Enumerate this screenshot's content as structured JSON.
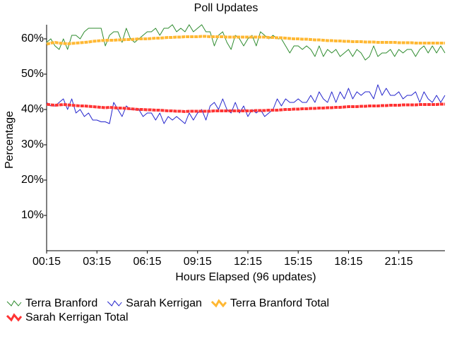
{
  "chart_data": {
    "type": "line",
    "title": "Poll Updates",
    "xlabel": "Hours Elapsed (96 updates)",
    "ylabel": "Percentage",
    "categories": [
      "00:15",
      null,
      null,
      null,
      null,
      null,
      null,
      null,
      null,
      null,
      null,
      null,
      "03:15",
      null,
      null,
      null,
      null,
      null,
      null,
      null,
      null,
      null,
      null,
      null,
      "06:15",
      null,
      null,
      null,
      null,
      null,
      null,
      null,
      null,
      null,
      null,
      null,
      "09:15",
      null,
      null,
      null,
      null,
      null,
      null,
      null,
      null,
      null,
      null,
      null,
      "12:15",
      null,
      null,
      null,
      null,
      null,
      null,
      null,
      null,
      null,
      null,
      null,
      "15:15",
      null,
      null,
      null,
      null,
      null,
      null,
      null,
      null,
      null,
      null,
      null,
      "18:15",
      null,
      null,
      null,
      null,
      null,
      null,
      null,
      null,
      null,
      null,
      null,
      "21:15",
      null,
      null,
      null,
      null,
      null,
      null,
      null,
      null,
      null,
      null,
      null
    ],
    "ylim": [
      0,
      64
    ],
    "yticks": [
      {
        "value": 10,
        "label": "10%"
      },
      {
        "value": 20,
        "label": "20%"
      },
      {
        "value": 30,
        "label": "30%"
      },
      {
        "value": 40,
        "label": "40%"
      },
      {
        "value": 50,
        "label": "50%"
      },
      {
        "value": 60,
        "label": "60%"
      }
    ],
    "grid": false,
    "legend": "bottom",
    "series": [
      {
        "name": "Terra Branford",
        "color": "#2e8b2e",
        "width": 1,
        "values": [
          59,
          60,
          58,
          57,
          60,
          57,
          61,
          61,
          60,
          62,
          63,
          63,
          63,
          63,
          58,
          61,
          62,
          62,
          59,
          63,
          60,
          59,
          60,
          61,
          62,
          62,
          63,
          61,
          63,
          63,
          64,
          62,
          63,
          62,
          64,
          62,
          63,
          64,
          62,
          62,
          58,
          61,
          62,
          59,
          57,
          61,
          60,
          58,
          60,
          61,
          58,
          62,
          61,
          60,
          61,
          60,
          60,
          58,
          56,
          58,
          58,
          57,
          58,
          57,
          55,
          58,
          55,
          57,
          56,
          57,
          55,
          56,
          57,
          55,
          57,
          56,
          54,
          55,
          58,
          55,
          56,
          56,
          57,
          55,
          57,
          56,
          57,
          57,
          55,
          57,
          58,
          56,
          58,
          56,
          58,
          56
        ]
      },
      {
        "name": "Sarah Kerrigan",
        "color": "#2323cc",
        "width": 1,
        "values": [
          42,
          41,
          41,
          42,
          43,
          40,
          43,
          39,
          40,
          38,
          39,
          37,
          37,
          36.5,
          36.5,
          36,
          42,
          40,
          38,
          41,
          40,
          40,
          40,
          38,
          39,
          39,
          37,
          39,
          36,
          38,
          37,
          38,
          37,
          36,
          39,
          37,
          39,
          40,
          37,
          41,
          42,
          40,
          43,
          40,
          39,
          42,
          39,
          41,
          38,
          40,
          39,
          40,
          38,
          39,
          40,
          43,
          41,
          43,
          42,
          42,
          43,
          42,
          42,
          44,
          42,
          45,
          43,
          42,
          45,
          42,
          45,
          43,
          46,
          43,
          45,
          44,
          45,
          45,
          43,
          47,
          44,
          46,
          44,
          44,
          45,
          43,
          44,
          44,
          45,
          42,
          45,
          43,
          42,
          44,
          42,
          44
        ]
      },
      {
        "name": "Terra Branford Total",
        "color": "#ffb833",
        "width": 4,
        "values": [
          58.5,
          58.8,
          59,
          58.8,
          58.7,
          58.6,
          58.7,
          58.8,
          58.9,
          59,
          59.1,
          59.3,
          59.4,
          59.5,
          59.6,
          59.6,
          59.6,
          59.7,
          59.7,
          59.8,
          59.8,
          59.9,
          60,
          60,
          60,
          60.1,
          60.2,
          60.2,
          60.3,
          60.4,
          60.4,
          60.5,
          60.5,
          60.6,
          60.6,
          60.6,
          60.6,
          60.7,
          60.7,
          60.6,
          60.6,
          60.6,
          60.6,
          60.5,
          60.5,
          60.5,
          60.5,
          60.5,
          60.5,
          60.5,
          60.5,
          60.5,
          60.5,
          60.4,
          60.4,
          60.3,
          60.3,
          60.2,
          60.1,
          60,
          60,
          59.9,
          59.9,
          59.8,
          59.7,
          59.7,
          59.6,
          59.5,
          59.5,
          59.4,
          59.4,
          59.3,
          59.3,
          59.2,
          59.2,
          59.2,
          59.1,
          59.1,
          59.1,
          59,
          59,
          59,
          59,
          59,
          58.9,
          58.9,
          58.9,
          58.9,
          58.8,
          58.8,
          58.8,
          58.8,
          58.8,
          58.8,
          58.8,
          58.8
        ]
      },
      {
        "name": "Sarah Kerrigan Total",
        "color": "#ff3333",
        "width": 4,
        "values": [
          41.5,
          41.3,
          41.2,
          41.3,
          41.4,
          41.3,
          41.2,
          41.1,
          41,
          41,
          40.9,
          40.8,
          40.7,
          40.6,
          40.5,
          40.6,
          40.5,
          40.4,
          40.4,
          40.3,
          40.2,
          40.1,
          40,
          40,
          39.9,
          39.9,
          39.8,
          39.8,
          39.7,
          39.6,
          39.6,
          39.5,
          39.5,
          39.4,
          39.5,
          39.5,
          39.5,
          39.5,
          39.5,
          39.5,
          39.6,
          39.6,
          39.6,
          39.6,
          39.6,
          39.6,
          39.6,
          39.6,
          39.6,
          39.6,
          39.7,
          39.7,
          39.7,
          39.8,
          39.8,
          39.8,
          39.9,
          40,
          40,
          40.1,
          40.1,
          40.2,
          40.2,
          40.3,
          40.3,
          40.4,
          40.4,
          40.5,
          40.5,
          40.6,
          40.6,
          40.7,
          40.8,
          40.8,
          40.8,
          40.9,
          40.9,
          41,
          41,
          41,
          41.1,
          41.1,
          41.2,
          41.2,
          41.2,
          41.3,
          41.3,
          41.3,
          41.3,
          41.4,
          41.4,
          41.4,
          41.4,
          41.4,
          41.5,
          41.5
        ]
      }
    ]
  }
}
